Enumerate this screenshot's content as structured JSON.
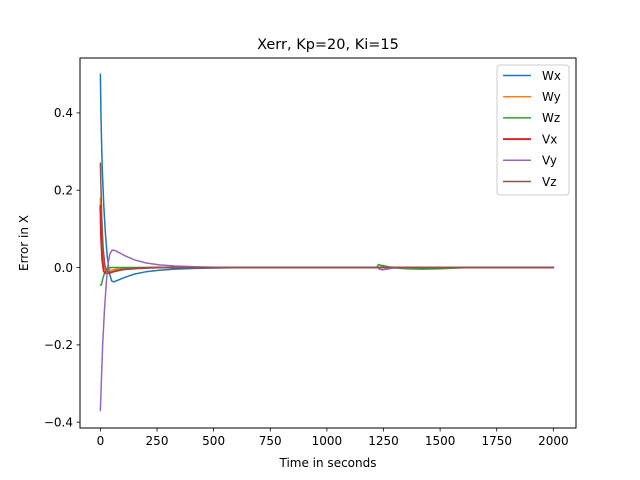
{
  "chart_data": {
    "type": "line",
    "title": "Xerr, Kp=20, Ki=15",
    "xlabel": "Time in seconds",
    "ylabel": "Error in X",
    "xlim": [
      -90,
      2100
    ],
    "ylim": [
      -0.415,
      0.542
    ],
    "xticks": [
      0,
      250,
      500,
      750,
      1000,
      1250,
      1500,
      1750,
      2000
    ],
    "xtick_labels": [
      "0",
      "250",
      "500",
      "750",
      "1000",
      "1250",
      "1500",
      "1750",
      "2000"
    ],
    "yticks": [
      -0.4,
      -0.2,
      0.0,
      0.2,
      0.4
    ],
    "ytick_labels": [
      "−0.4",
      "−0.2",
      "0.0",
      "0.2",
      "0.4"
    ],
    "grid": false,
    "legend_position": "top-right",
    "series": [
      {
        "name": "Wx",
        "color": "#1f77b4",
        "linewidth": 1.5,
        "points": [
          [
            0,
            0.5
          ],
          [
            3,
            0.38
          ],
          [
            8,
            0.26
          ],
          [
            15,
            0.16
          ],
          [
            22,
            0.09
          ],
          [
            30,
            0.03
          ],
          [
            40,
            -0.015
          ],
          [
            50,
            -0.035
          ],
          [
            60,
            -0.037
          ],
          [
            80,
            -0.032
          ],
          [
            110,
            -0.025
          ],
          [
            150,
            -0.017
          ],
          [
            200,
            -0.011
          ],
          [
            260,
            -0.007
          ],
          [
            330,
            -0.004
          ],
          [
            420,
            -0.002
          ],
          [
            520,
            -0.001
          ],
          [
            650,
            0.0
          ],
          [
            2000,
            0.0
          ]
        ]
      },
      {
        "name": "Wy",
        "color": "#ff7f0e",
        "linewidth": 1.5,
        "points": [
          [
            0,
            0.18
          ],
          [
            3,
            0.1
          ],
          [
            8,
            0.04
          ],
          [
            15,
            0.005
          ],
          [
            25,
            -0.008
          ],
          [
            40,
            -0.008
          ],
          [
            70,
            -0.004
          ],
          [
            120,
            -0.001
          ],
          [
            200,
            0.0
          ],
          [
            1230,
            0.0
          ],
          [
            1245,
            0.002
          ],
          [
            1270,
            0.001
          ],
          [
            1300,
            0.0
          ],
          [
            2000,
            0.0
          ]
        ]
      },
      {
        "name": "Wz",
        "color": "#2ca02c",
        "linewidth": 1.5,
        "points": [
          [
            0,
            -0.045
          ],
          [
            4,
            -0.045
          ],
          [
            10,
            -0.03
          ],
          [
            18,
            -0.015
          ],
          [
            28,
            -0.005
          ],
          [
            45,
            0.0
          ],
          [
            60,
            0.0
          ],
          [
            1220,
            0.0
          ],
          [
            1228,
            0.008
          ],
          [
            1236,
            0.006
          ],
          [
            1248,
            0.005
          ],
          [
            1262,
            0.003
          ],
          [
            1280,
            0.001
          ],
          [
            1300,
            -0.001
          ],
          [
            1350,
            -0.003
          ],
          [
            1420,
            -0.004
          ],
          [
            1500,
            -0.003
          ],
          [
            1580,
            -0.001
          ],
          [
            1650,
            0.0
          ],
          [
            2000,
            0.0
          ]
        ]
      },
      {
        "name": "Vx",
        "color": "#d62728",
        "linewidth": 2,
        "points": [
          [
            0,
            0.16
          ],
          [
            3,
            0.08
          ],
          [
            8,
            0.02
          ],
          [
            15,
            -0.01
          ],
          [
            25,
            -0.015
          ],
          [
            40,
            -0.014
          ],
          [
            60,
            -0.01
          ],
          [
            100,
            -0.005
          ],
          [
            160,
            -0.002
          ],
          [
            250,
            0.0
          ],
          [
            2000,
            0.0
          ]
        ]
      },
      {
        "name": "Vy",
        "color": "#9467bd",
        "linewidth": 1.5,
        "points": [
          [
            0,
            -0.37
          ],
          [
            4,
            -0.3
          ],
          [
            10,
            -0.2
          ],
          [
            18,
            -0.11
          ],
          [
            26,
            -0.04
          ],
          [
            34,
            0.01
          ],
          [
            42,
            0.035
          ],
          [
            52,
            0.045
          ],
          [
            65,
            0.044
          ],
          [
            85,
            0.038
          ],
          [
            110,
            0.03
          ],
          [
            150,
            0.02
          ],
          [
            200,
            0.012
          ],
          [
            260,
            0.007
          ],
          [
            330,
            0.004
          ],
          [
            420,
            0.002
          ],
          [
            550,
            0.0
          ],
          [
            1225,
            0.0
          ],
          [
            1232,
            -0.004
          ],
          [
            1245,
            -0.006
          ],
          [
            1265,
            -0.004
          ],
          [
            1300,
            -0.001
          ],
          [
            1400,
            0.0
          ],
          [
            2000,
            0.0
          ]
        ]
      },
      {
        "name": "Vz",
        "color": "#8c564b",
        "linewidth": 1.5,
        "points": [
          [
            0,
            0.27
          ],
          [
            2,
            0.22
          ],
          [
            6,
            0.13
          ],
          [
            12,
            0.05
          ],
          [
            20,
            0.005
          ],
          [
            30,
            -0.01
          ],
          [
            45,
            -0.012
          ],
          [
            70,
            -0.008
          ],
          [
            110,
            -0.004
          ],
          [
            170,
            -0.001
          ],
          [
            250,
            0.0
          ],
          [
            2000,
            0.0
          ]
        ]
      }
    ]
  }
}
